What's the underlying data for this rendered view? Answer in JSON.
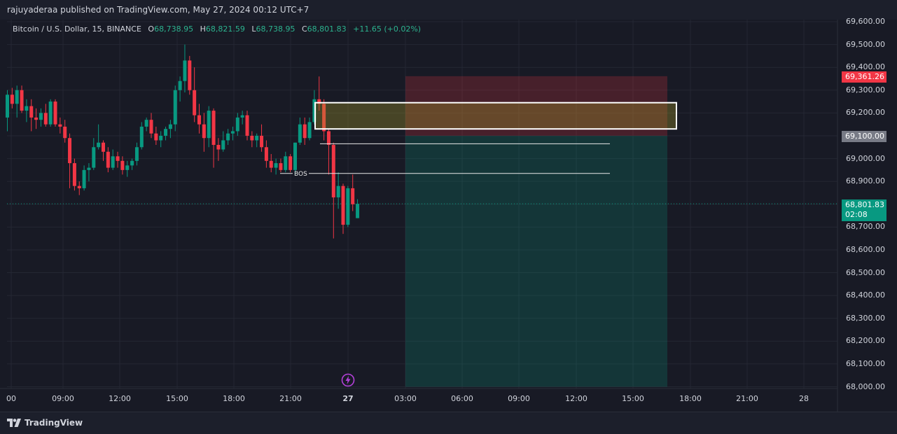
{
  "publisher": "rajuyaderaa published on TradingView.com, May 27, 2024 00:12 UTC+7",
  "legend": {
    "symbol": "Bitcoin / U.S. Dollar, 15, BINANCE",
    "open_label": "O",
    "open": "68,738.95",
    "high_label": "H",
    "high": "68,821.59",
    "low_label": "L",
    "low": "68,738.95",
    "close_label": "C",
    "close": "68,801.83",
    "change": "+11.65 (+0.02%)"
  },
  "price_axis": [
    "69,600.00",
    "69,500.00",
    "69,400.00",
    "69,300.00",
    "69,200.00",
    "69,100.00",
    "69,000.00",
    "68,900.00",
    "68,800.00",
    "68,700.00",
    "68,600.00",
    "68,500.00",
    "68,400.00",
    "68,300.00",
    "68,200.00",
    "68,100.00",
    "68,000.00"
  ],
  "time_axis": [
    {
      "label": "00",
      "bold": false
    },
    {
      "label": "09:00",
      "bold": false
    },
    {
      "label": "12:00",
      "bold": false
    },
    {
      "label": "15:00",
      "bold": false
    },
    {
      "label": "18:00",
      "bold": false
    },
    {
      "label": "21:00",
      "bold": false
    },
    {
      "label": "27",
      "bold": true
    },
    {
      "label": "03:00",
      "bold": false
    },
    {
      "label": "06:00",
      "bold": false
    },
    {
      "label": "09:00",
      "bold": false
    },
    {
      "label": "12:00",
      "bold": false
    },
    {
      "label": "15:00",
      "bold": false
    },
    {
      "label": "18:00",
      "bold": false
    },
    {
      "label": "21:00",
      "bold": false
    },
    {
      "label": "28",
      "bold": false
    }
  ],
  "tags": {
    "stop_loss": "69,361.26",
    "entry": "69,100.00",
    "last_price": "68,801.83",
    "countdown": "02:08"
  },
  "bos_label": "BOS",
  "footer_brand": "TradingView",
  "colors": {
    "bull": "#089981",
    "bear": "#f23645",
    "background": "#181a25"
  },
  "chart_data": {
    "type": "candlestick",
    "symbol": "BTCUSD",
    "interval": "15",
    "ylim": [
      68000,
      69600
    ],
    "candles": [
      {
        "o": 69180,
        "h": 69300,
        "l": 69120,
        "c": 69280
      },
      {
        "o": 69280,
        "h": 69310,
        "l": 69220,
        "c": 69240
      },
      {
        "o": 69240,
        "h": 69320,
        "l": 69180,
        "c": 69300
      },
      {
        "o": 69300,
        "h": 69320,
        "l": 69200,
        "c": 69210
      },
      {
        "o": 69210,
        "h": 69260,
        "l": 69160,
        "c": 69230
      },
      {
        "o": 69230,
        "h": 69260,
        "l": 69120,
        "c": 69180
      },
      {
        "o": 69180,
        "h": 69220,
        "l": 69130,
        "c": 69170
      },
      {
        "o": 69170,
        "h": 69220,
        "l": 69140,
        "c": 69200
      },
      {
        "o": 69200,
        "h": 69240,
        "l": 69140,
        "c": 69150
      },
      {
        "o": 69150,
        "h": 69260,
        "l": 69140,
        "c": 69250
      },
      {
        "o": 69250,
        "h": 69260,
        "l": 69140,
        "c": 69150
      },
      {
        "o": 69150,
        "h": 69180,
        "l": 69110,
        "c": 69140
      },
      {
        "o": 69140,
        "h": 69170,
        "l": 69070,
        "c": 69090
      },
      {
        "o": 69090,
        "h": 69110,
        "l": 68870,
        "c": 68980
      },
      {
        "o": 68980,
        "h": 69000,
        "l": 68860,
        "c": 68880
      },
      {
        "o": 68880,
        "h": 68900,
        "l": 68840,
        "c": 68870
      },
      {
        "o": 68870,
        "h": 68970,
        "l": 68860,
        "c": 68950
      },
      {
        "o": 68950,
        "h": 68980,
        "l": 68900,
        "c": 68960
      },
      {
        "o": 68960,
        "h": 69090,
        "l": 68950,
        "c": 69050
      },
      {
        "o": 69050,
        "h": 69150,
        "l": 69040,
        "c": 69070
      },
      {
        "o": 69070,
        "h": 69080,
        "l": 68990,
        "c": 69030
      },
      {
        "o": 69030,
        "h": 69050,
        "l": 68940,
        "c": 68960
      },
      {
        "o": 68960,
        "h": 69040,
        "l": 68950,
        "c": 69010
      },
      {
        "o": 69010,
        "h": 69030,
        "l": 68960,
        "c": 68990
      },
      {
        "o": 68990,
        "h": 69010,
        "l": 68930,
        "c": 68950
      },
      {
        "o": 68950,
        "h": 68990,
        "l": 68920,
        "c": 68970
      },
      {
        "o": 68970,
        "h": 69000,
        "l": 68950,
        "c": 68990
      },
      {
        "o": 68990,
        "h": 69070,
        "l": 68970,
        "c": 69050
      },
      {
        "o": 69050,
        "h": 69160,
        "l": 69040,
        "c": 69140
      },
      {
        "o": 69140,
        "h": 69180,
        "l": 69120,
        "c": 69170
      },
      {
        "o": 69170,
        "h": 69200,
        "l": 69090,
        "c": 69110
      },
      {
        "o": 69110,
        "h": 69140,
        "l": 69060,
        "c": 69080
      },
      {
        "o": 69080,
        "h": 69120,
        "l": 69050,
        "c": 69100
      },
      {
        "o": 69100,
        "h": 69140,
        "l": 69080,
        "c": 69130
      },
      {
        "o": 69130,
        "h": 69170,
        "l": 69090,
        "c": 69150
      },
      {
        "o": 69150,
        "h": 69320,
        "l": 69120,
        "c": 69300
      },
      {
        "o": 69300,
        "h": 69360,
        "l": 69250,
        "c": 69340
      },
      {
        "o": 69340,
        "h": 69500,
        "l": 69290,
        "c": 69430
      },
      {
        "o": 69430,
        "h": 69450,
        "l": 69280,
        "c": 69300
      },
      {
        "o": 69300,
        "h": 69400,
        "l": 69160,
        "c": 69190
      },
      {
        "o": 69190,
        "h": 69240,
        "l": 69110,
        "c": 69150
      },
      {
        "o": 69150,
        "h": 69200,
        "l": 69030,
        "c": 69090
      },
      {
        "o": 69090,
        "h": 69230,
        "l": 69050,
        "c": 69210
      },
      {
        "o": 69210,
        "h": 69220,
        "l": 68960,
        "c": 69060
      },
      {
        "o": 69060,
        "h": 69090,
        "l": 68990,
        "c": 69040
      },
      {
        "o": 69040,
        "h": 69120,
        "l": 69030,
        "c": 69080
      },
      {
        "o": 69080,
        "h": 69130,
        "l": 69060,
        "c": 69110
      },
      {
        "o": 69110,
        "h": 69140,
        "l": 69080,
        "c": 69120
      },
      {
        "o": 69120,
        "h": 69200,
        "l": 69100,
        "c": 69180
      },
      {
        "o": 69180,
        "h": 69210,
        "l": 69150,
        "c": 69190
      },
      {
        "o": 69190,
        "h": 69210,
        "l": 69080,
        "c": 69100
      },
      {
        "o": 69100,
        "h": 69120,
        "l": 69050,
        "c": 69080
      },
      {
        "o": 69080,
        "h": 69110,
        "l": 69050,
        "c": 69100
      },
      {
        "o": 69100,
        "h": 69150,
        "l": 69030,
        "c": 69050
      },
      {
        "o": 69050,
        "h": 69080,
        "l": 68960,
        "c": 68990
      },
      {
        "o": 68990,
        "h": 69020,
        "l": 68940,
        "c": 68960
      },
      {
        "o": 68960,
        "h": 69000,
        "l": 68930,
        "c": 68980
      },
      {
        "o": 68980,
        "h": 69000,
        "l": 68940,
        "c": 68950
      },
      {
        "o": 68950,
        "h": 69030,
        "l": 68940,
        "c": 69010
      },
      {
        "o": 69010,
        "h": 69020,
        "l": 68940,
        "c": 68950
      },
      {
        "o": 68950,
        "h": 69070,
        "l": 68930,
        "c": 69070
      },
      {
        "o": 69070,
        "h": 69180,
        "l": 69060,
        "c": 69150
      },
      {
        "o": 69150,
        "h": 69180,
        "l": 69060,
        "c": 69090
      },
      {
        "o": 69090,
        "h": 69180,
        "l": 69080,
        "c": 69160
      },
      {
        "o": 69160,
        "h": 69300,
        "l": 69150,
        "c": 69260
      },
      {
        "o": 69260,
        "h": 69360,
        "l": 69210,
        "c": 69240
      },
      {
        "o": 69240,
        "h": 69260,
        "l": 69080,
        "c": 69120
      },
      {
        "o": 69120,
        "h": 69130,
        "l": 68930,
        "c": 69060
      },
      {
        "o": 69060,
        "h": 69070,
        "l": 68650,
        "c": 68830
      },
      {
        "o": 68830,
        "h": 68940,
        "l": 68780,
        "c": 68880
      },
      {
        "o": 68880,
        "h": 68890,
        "l": 68670,
        "c": 68710
      },
      {
        "o": 68710,
        "h": 68880,
        "l": 68700,
        "c": 68870
      },
      {
        "o": 68870,
        "h": 68930,
        "l": 68770,
        "c": 68800
      },
      {
        "o": 68739,
        "h": 68822,
        "l": 68739,
        "c": 68802
      }
    ],
    "position": {
      "side": "long",
      "stop": 69361.26,
      "entry": 69100.0,
      "target": 68000
    },
    "order_block": {
      "top": 69245,
      "bottom": 69130
    },
    "lines": [
      {
        "price": 69065,
        "label": ""
      },
      {
        "price": 68935,
        "label": "BOS"
      }
    ],
    "last_price": 68801.83
  }
}
